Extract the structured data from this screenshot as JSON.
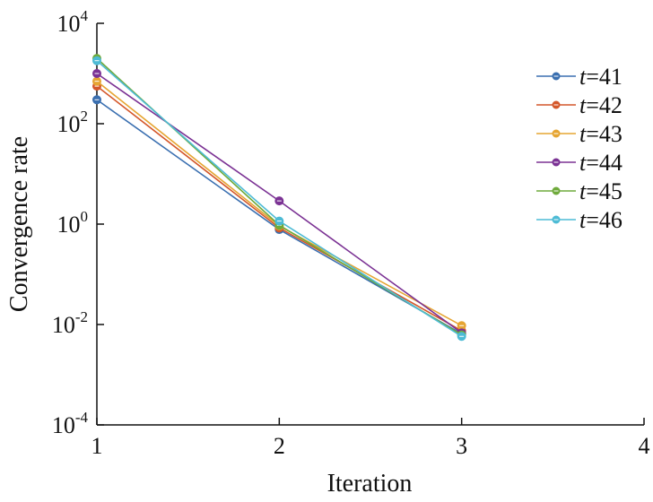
{
  "chart_data": {
    "type": "line",
    "title": "",
    "xlabel": "Iteration",
    "ylabel": "Convergence rate",
    "x": [
      1,
      2,
      3
    ],
    "xlim": [
      1,
      4
    ],
    "xticks": [
      "1",
      "2",
      "3",
      "4"
    ],
    "ylim": [
      0.0001,
      10000
    ],
    "yscale": "log",
    "yticks": [
      {
        "base": "10",
        "exp": "-4"
      },
      {
        "base": "10",
        "exp": "-2"
      },
      {
        "base": "10",
        "exp": "0"
      },
      {
        "base": "10",
        "exp": "2"
      },
      {
        "base": "10",
        "exp": "4"
      }
    ],
    "grid": false,
    "legend_position": "right",
    "series": [
      {
        "name_var": "t",
        "name_rest": "=41",
        "color": "#3A6FB0",
        "values": [
          300,
          0.78,
          0.0065
        ]
      },
      {
        "name_var": "t",
        "name_rest": "=42",
        "color": "#D4572A",
        "values": [
          560,
          0.84,
          0.0075
        ]
      },
      {
        "name_var": "t",
        "name_rest": "=43",
        "color": "#E6A532",
        "values": [
          700,
          0.92,
          0.0095
        ]
      },
      {
        "name_var": "t",
        "name_rest": "=44",
        "color": "#7B3294",
        "values": [
          1000,
          2.9,
          0.0068
        ]
      },
      {
        "name_var": "t",
        "name_rest": "=45",
        "color": "#6FAA3C",
        "values": [
          2000,
          0.95,
          0.0062
        ]
      },
      {
        "name_var": "t",
        "name_rest": "=46",
        "color": "#4DBBD5",
        "values": [
          1800,
          1.15,
          0.0058
        ]
      }
    ]
  }
}
